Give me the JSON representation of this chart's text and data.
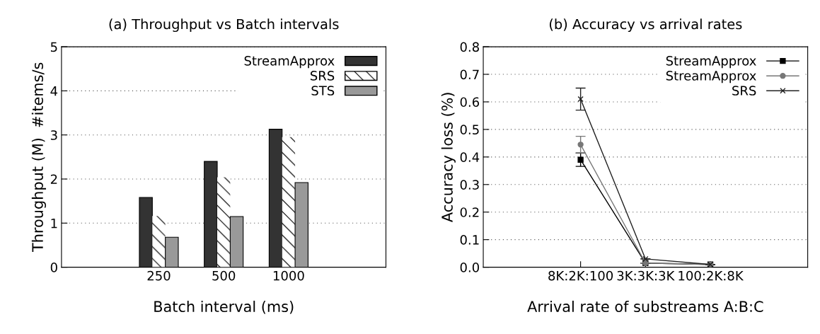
{
  "chart_data": [
    {
      "type": "bar",
      "title": "(a) Throughput vs Batch intervals",
      "xlabel": "Batch interval (ms)",
      "ylabel": "Throughput (M)  #items/s",
      "categories": [
        null,
        "250",
        "500",
        "1000",
        null
      ],
      "series": [
        {
          "name": "StreamApprox",
          "color": "#333333",
          "values": [
            null,
            1.58,
            2.4,
            3.13,
            null
          ]
        },
        {
          "name": "SRS",
          "color": "#ffffff",
          "values": [
            null,
            1.16,
            2.04,
            2.95,
            null
          ]
        },
        {
          "name": "STS",
          "color": "#999999",
          "values": [
            null,
            0.68,
            1.15,
            1.92,
            null
          ]
        }
      ],
      "ylim": [
        0,
        5
      ],
      "yticks": [
        0,
        1,
        2,
        3,
        4,
        5
      ],
      "grid": "y",
      "legend": "top right"
    },
    {
      "type": "line",
      "title": "(b) Accuracy vs arrival rates",
      "xlabel": "Arrival rate of substreams A:B:C",
      "ylabel": "Accuracy loss (%)",
      "categories": [
        null,
        "8K:2K:100",
        "3K:3K:3K",
        "100:2K:8K",
        null
      ],
      "series": [
        {
          "name": "StreamApprox",
          "color": "#000000",
          "marker": "square",
          "values": [
            null,
            0.39,
            0.015,
            0.01,
            null
          ],
          "errors": [
            null,
            0.024,
            null,
            null,
            null
          ]
        },
        {
          "name": "StreamApprox",
          "color": "#777777",
          "marker": "circle",
          "values": [
            null,
            0.445,
            0.015,
            0.01,
            null
          ],
          "errors": [
            null,
            0.03,
            null,
            null,
            null
          ]
        },
        {
          "name": "SRS",
          "color": "#222222",
          "marker": "cross",
          "values": [
            null,
            0.61,
            0.03,
            0.01,
            null
          ],
          "errors": [
            null,
            0.04,
            null,
            null,
            null
          ]
        }
      ],
      "ylim": [
        0,
        0.8
      ],
      "yticks": [
        {
          "value": 0,
          "label": "0.0"
        },
        0.1,
        0.2,
        0.3,
        0.4,
        0.5,
        0.6,
        0.7,
        0.8
      ],
      "grid": "y",
      "legend": "top right"
    }
  ]
}
